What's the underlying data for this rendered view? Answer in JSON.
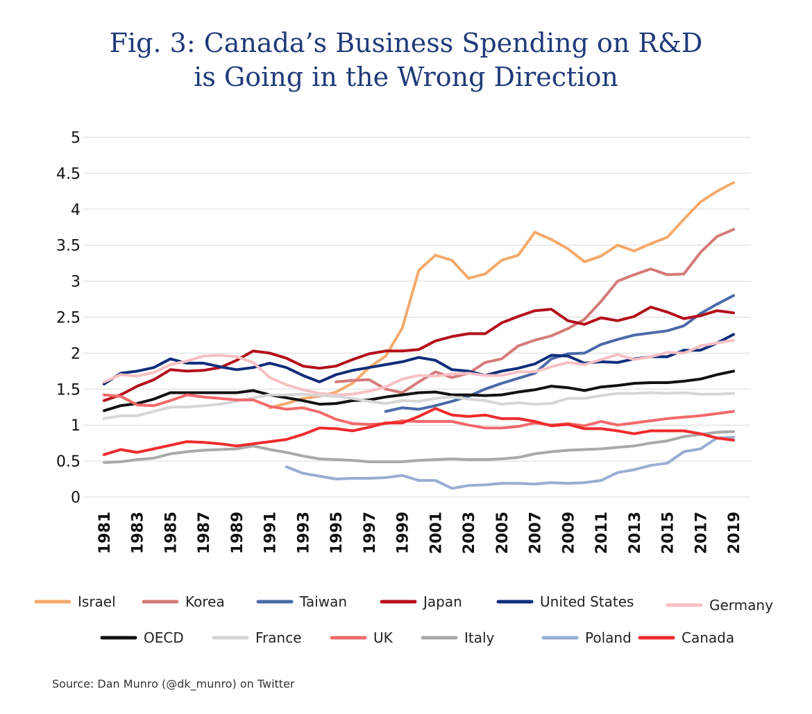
{
  "title_lines": [
    "Fig. 3: Canada’s Business Spending on R&D",
    "is Going in the Wrong Direction"
  ],
  "source": "Source: Dan Munro (@dk_munro) on Twitter",
  "chart_data": {
    "type": "line",
    "title": "Fig. 3: Canada’s Business Spending on R&D is Going in the Wrong Direction",
    "xlabel": "",
    "ylabel": "",
    "x_start": 1981,
    "x_end": 2019,
    "x_tick_labels": [
      "1981",
      "1983",
      "1985",
      "1987",
      "1989",
      "1991",
      "1993",
      "1995",
      "1997",
      "1999",
      "2001",
      "2003",
      "2005",
      "2007",
      "2009",
      "2011",
      "2013",
      "2015",
      "2017",
      "2019"
    ],
    "y_tick_labels": [
      "0",
      "0.5",
      "1",
      "1.5",
      "2",
      "2.5",
      "3",
      "3.5",
      "4",
      "4.5",
      "5"
    ],
    "ylim": [
      0,
      5
    ],
    "grid": "horizontal",
    "legend_position": "bottom",
    "series": [
      {
        "name": "Israel",
        "color": "#f4a96b",
        "start": 1991,
        "values": [
          1.24,
          1.3,
          1.37,
          1.4,
          1.46,
          1.58,
          1.8,
          1.96,
          2.35,
          3.15,
          3.36,
          3.29,
          3.04,
          3.1,
          3.29,
          3.36,
          3.68,
          3.58,
          3.45,
          3.27,
          3.35,
          3.5,
          3.42,
          3.52,
          3.61,
          3.86,
          4.1,
          4.25,
          4.37
        ]
      },
      {
        "name": "Korea",
        "color": "#d47a7a",
        "start": 1995,
        "values": [
          1.6,
          1.62,
          1.63,
          1.5,
          1.45,
          1.6,
          1.74,
          1.66,
          1.72,
          1.87,
          1.92,
          2.1,
          2.18,
          2.24,
          2.34,
          2.47,
          2.72,
          3.0,
          3.09,
          3.17,
          3.09,
          3.1,
          3.4,
          3.62,
          3.72
        ]
      },
      {
        "name": "Taiwan",
        "color": "#4a6aa8",
        "start": 1998,
        "values": [
          1.19,
          1.24,
          1.22,
          1.27,
          1.33,
          1.4,
          1.5,
          1.58,
          1.65,
          1.72,
          1.92,
          1.99,
          2.0,
          2.12,
          2.19,
          2.25,
          2.28,
          2.31,
          2.38,
          2.55,
          2.68,
          2.8
        ]
      },
      {
        "name": "Japan",
        "color": "#b30f1a",
        "start": 1981,
        "values": [
          1.34,
          1.42,
          1.54,
          1.63,
          1.77,
          1.75,
          1.76,
          1.8,
          1.9,
          2.03,
          2.0,
          1.93,
          1.82,
          1.79,
          1.82,
          1.91,
          1.99,
          2.03,
          2.03,
          2.05,
          2.17,
          2.23,
          2.27,
          2.27,
          2.42,
          2.51,
          2.59,
          2.61,
          2.45,
          2.4,
          2.49,
          2.45,
          2.51,
          2.64,
          2.57,
          2.48,
          2.52,
          2.59,
          2.56
        ]
      },
      {
        "name": "United States",
        "color": "#0f2d7a",
        "start": 1981,
        "values": [
          1.57,
          1.72,
          1.75,
          1.8,
          1.92,
          1.86,
          1.86,
          1.81,
          1.77,
          1.8,
          1.86,
          1.8,
          1.69,
          1.6,
          1.7,
          1.76,
          1.8,
          1.84,
          1.88,
          1.94,
          1.9,
          1.77,
          1.75,
          1.69,
          1.75,
          1.79,
          1.85,
          1.97,
          1.96,
          1.86,
          1.88,
          1.87,
          1.92,
          1.95,
          1.95,
          2.04,
          2.04,
          2.14,
          2.26
        ]
      },
      {
        "name": "Germany",
        "color": "#f7c0c4",
        "start": 1981,
        "values": [
          1.6,
          1.7,
          1.68,
          1.73,
          1.84,
          1.89,
          1.96,
          1.97,
          1.95,
          1.87,
          1.66,
          1.56,
          1.49,
          1.44,
          1.42,
          1.43,
          1.47,
          1.53,
          1.64,
          1.69,
          1.68,
          1.71,
          1.72,
          1.69,
          1.69,
          1.74,
          1.74,
          1.81,
          1.87,
          1.84,
          1.91,
          1.98,
          1.91,
          1.95,
          2.01,
          2.0,
          2.1,
          2.14,
          2.18
        ]
      },
      {
        "name": "OECD",
        "color": "#111111",
        "start": 1981,
        "values": [
          1.2,
          1.27,
          1.3,
          1.36,
          1.45,
          1.45,
          1.45,
          1.45,
          1.45,
          1.48,
          1.42,
          1.38,
          1.34,
          1.29,
          1.3,
          1.34,
          1.35,
          1.39,
          1.42,
          1.45,
          1.46,
          1.42,
          1.42,
          1.41,
          1.42,
          1.46,
          1.49,
          1.54,
          1.52,
          1.48,
          1.53,
          1.55,
          1.58,
          1.59,
          1.59,
          1.61,
          1.64,
          1.7,
          1.75
        ]
      },
      {
        "name": "France",
        "color": "#d6d6d6",
        "start": 1981,
        "values": [
          1.09,
          1.13,
          1.13,
          1.19,
          1.25,
          1.25,
          1.27,
          1.29,
          1.33,
          1.38,
          1.42,
          1.42,
          1.43,
          1.41,
          1.4,
          1.37,
          1.33,
          1.3,
          1.34,
          1.33,
          1.37,
          1.39,
          1.36,
          1.34,
          1.29,
          1.31,
          1.29,
          1.3,
          1.37,
          1.37,
          1.41,
          1.44,
          1.44,
          1.45,
          1.44,
          1.45,
          1.43,
          1.43,
          1.44
        ]
      },
      {
        "name": "UK",
        "color": "#f26a6a",
        "start": 1981,
        "values": [
          1.42,
          1.4,
          1.28,
          1.27,
          1.34,
          1.42,
          1.39,
          1.37,
          1.35,
          1.35,
          1.26,
          1.22,
          1.24,
          1.18,
          1.08,
          1.02,
          1.01,
          1.02,
          1.06,
          1.05,
          1.05,
          1.05,
          1.0,
          0.96,
          0.96,
          0.98,
          1.03,
          1.0,
          1.02,
          0.99,
          1.05,
          1.0,
          1.03,
          1.06,
          1.09,
          1.11,
          1.13,
          1.16,
          1.19
        ]
      },
      {
        "name": "Italy",
        "color": "#a9a9a9",
        "start": 1981,
        "values": [
          0.48,
          0.49,
          0.52,
          0.54,
          0.6,
          0.63,
          0.65,
          0.66,
          0.67,
          0.71,
          0.66,
          0.62,
          0.57,
          0.53,
          0.52,
          0.51,
          0.49,
          0.49,
          0.49,
          0.51,
          0.52,
          0.53,
          0.52,
          0.52,
          0.53,
          0.55,
          0.6,
          0.63,
          0.65,
          0.66,
          0.67,
          0.69,
          0.71,
          0.75,
          0.78,
          0.84,
          0.87,
          0.9,
          0.91
        ]
      },
      {
        "name": "Poland",
        "color": "#99add3",
        "start": 1992,
        "values": [
          0.42,
          0.33,
          0.29,
          0.25,
          0.26,
          0.26,
          0.27,
          0.3,
          0.23,
          0.23,
          0.12,
          0.16,
          0.17,
          0.19,
          0.19,
          0.18,
          0.2,
          0.19,
          0.2,
          0.23,
          0.34,
          0.38,
          0.44,
          0.47,
          0.63,
          0.67,
          0.82,
          0.83
        ]
      },
      {
        "name": "Canada",
        "color": "#ef2b2d",
        "start": 1981,
        "values": [
          0.59,
          0.66,
          0.62,
          0.67,
          0.72,
          0.77,
          0.76,
          0.74,
          0.71,
          0.74,
          0.77,
          0.8,
          0.87,
          0.96,
          0.95,
          0.92,
          0.97,
          1.03,
          1.03,
          1.12,
          1.23,
          1.14,
          1.12,
          1.14,
          1.09,
          1.09,
          1.05,
          0.99,
          1.01,
          0.95,
          0.95,
          0.92,
          0.88,
          0.92,
          0.92,
          0.92,
          0.88,
          0.82,
          0.79
        ]
      }
    ]
  }
}
